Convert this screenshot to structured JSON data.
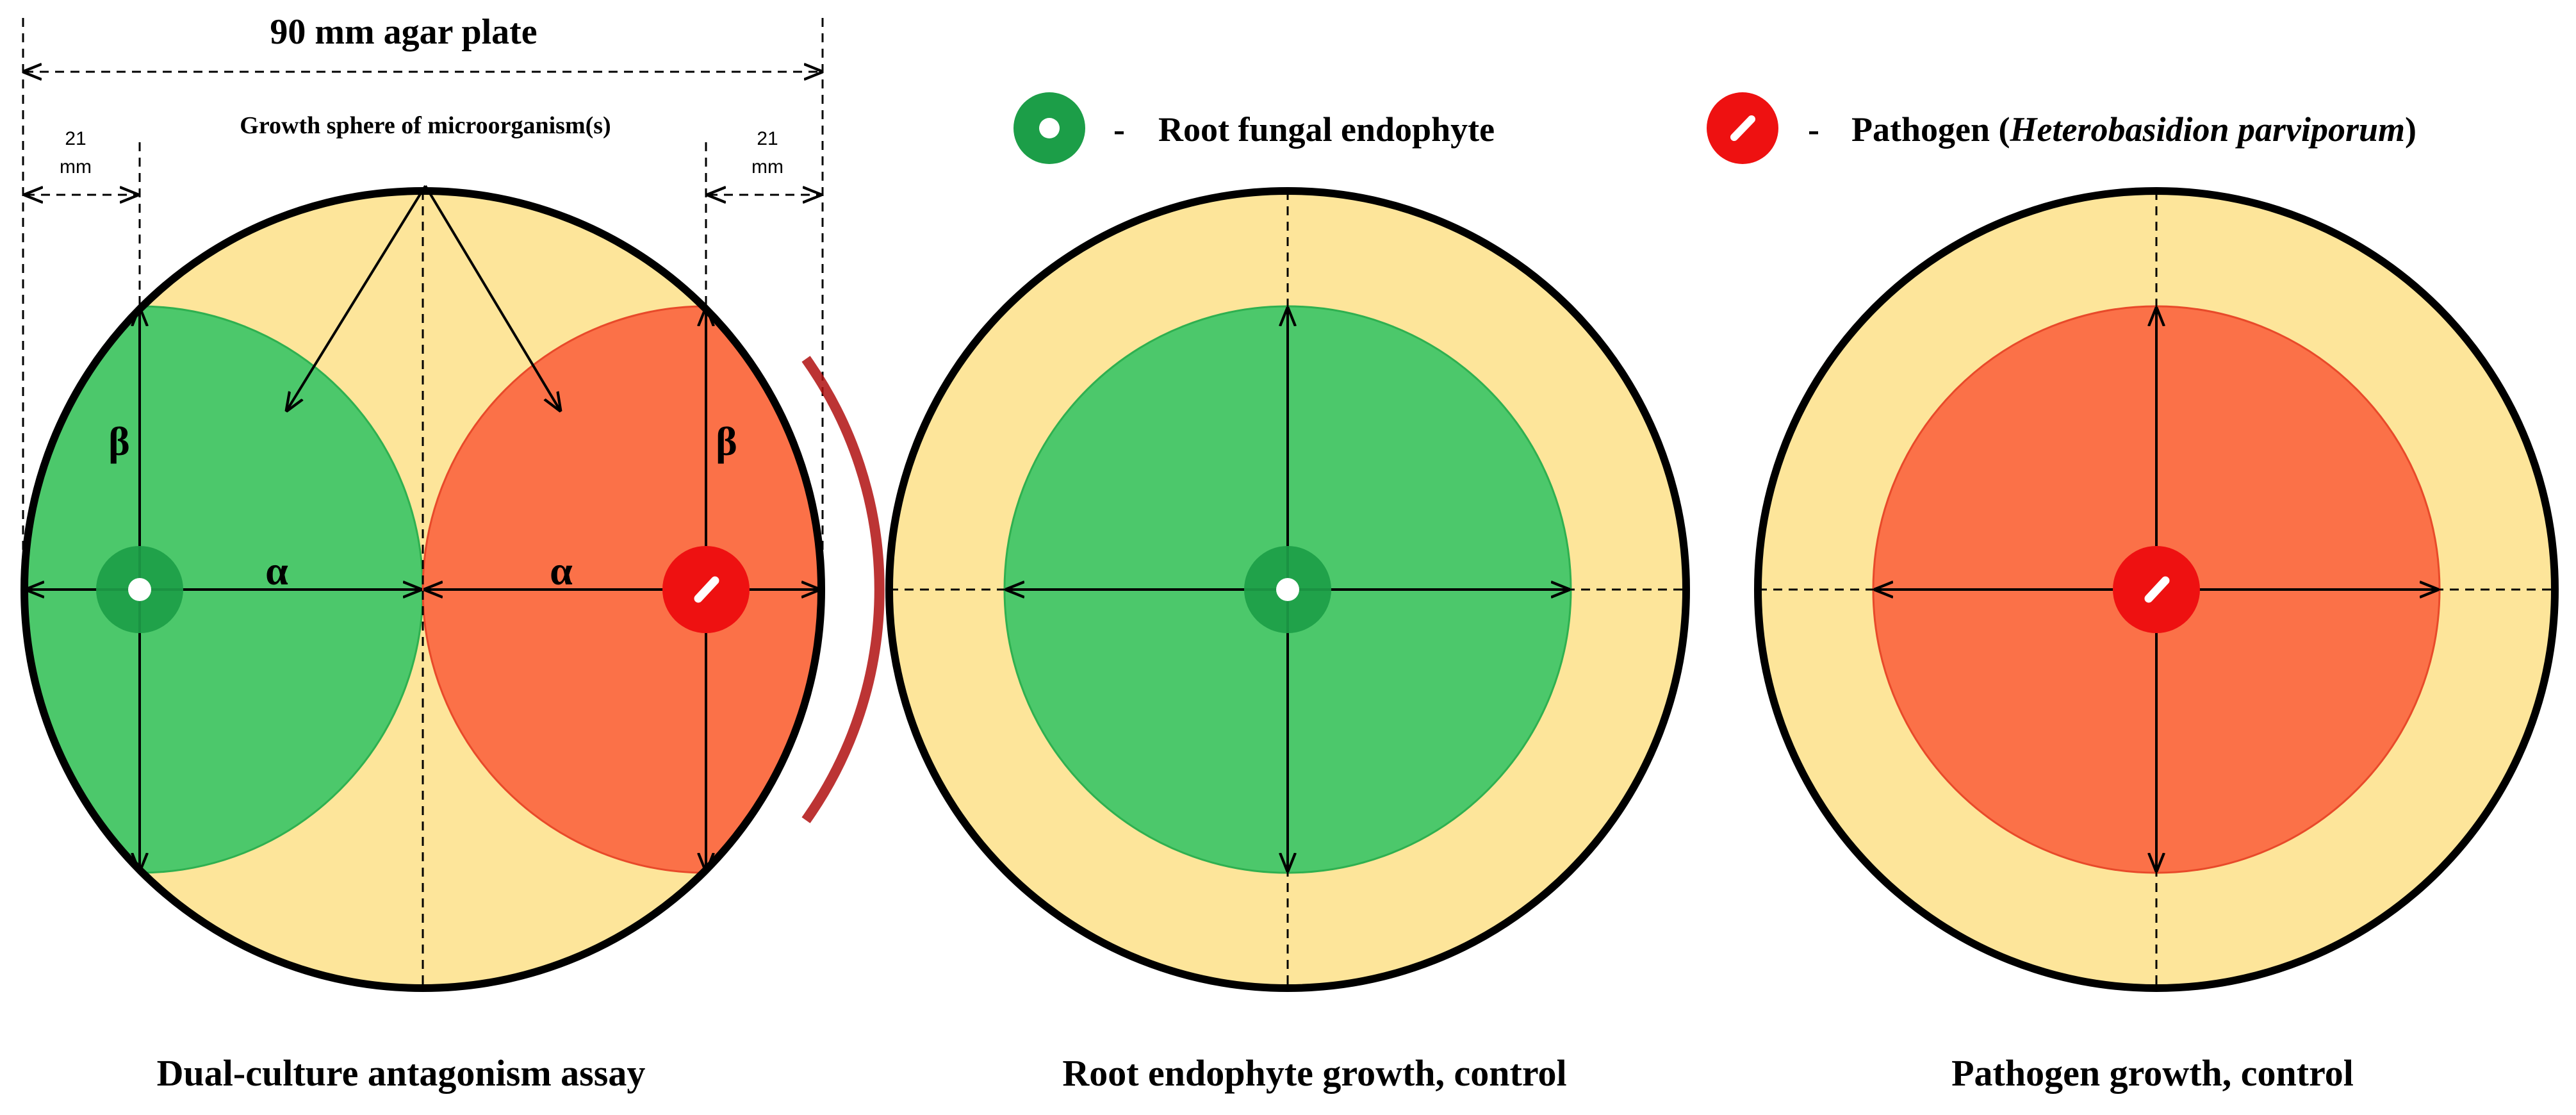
{
  "header": {
    "plate_title": "90 mm agar plate",
    "growth_label": "Growth sphere of microorganism(s)",
    "dim_left": [
      "21",
      "mm"
    ],
    "dim_right": [
      "21",
      "mm"
    ]
  },
  "legend": {
    "endophyte": {
      "dash": "-",
      "label": "Root fungal endophyte",
      "color": "#1f9e4a"
    },
    "pathogen": {
      "dash": "-",
      "label_prefix": "Pathogen (",
      "label_species": "Heterobasidion parviporum",
      "label_suffix": ")",
      "color": "#ee1111"
    }
  },
  "panels": {
    "dual": {
      "caption": "Dual-culture antagonism assay",
      "alpha_left": "α",
      "alpha_right": "α",
      "beta_left": "β",
      "beta_right": "β"
    },
    "endophyte": {
      "caption": "Root endophyte growth, control"
    },
    "pathogen": {
      "caption": "Pathogen growth, control"
    }
  },
  "colors": {
    "agar": "#fde59a",
    "endophyte_growth": "#4cc86b",
    "pathogen_growth": "#fb7148",
    "endophyte_plug": "#1c9e48",
    "pathogen_plug": "#ee1111",
    "rim": "#000000"
  }
}
